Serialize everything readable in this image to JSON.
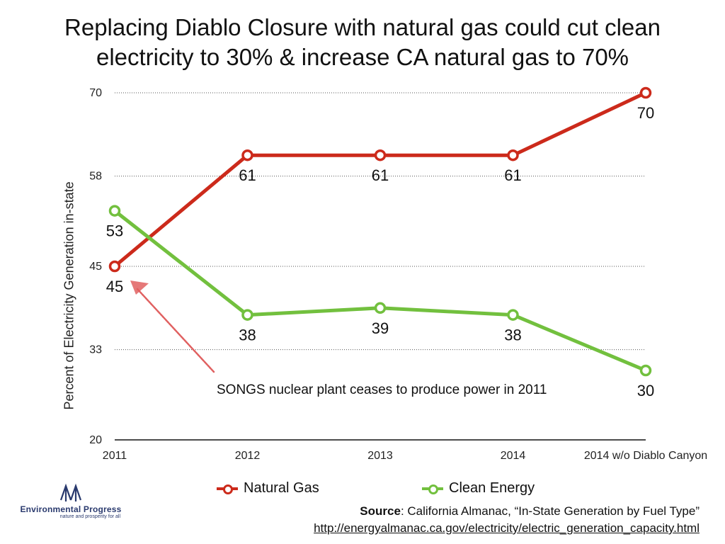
{
  "title_lines": [
    "Replacing Diablo Closure with natural gas could cut clean",
    "electricity to 30% & increase CA natural gas to 70%"
  ],
  "chart_data": {
    "type": "line",
    "title": "Replacing Diablo Closure with natural gas could cut clean electricity to 30% & increase CA natural gas to 70%",
    "ylabel": "Percent of Electricity Generation in-state",
    "xlabel": "",
    "categories": [
      "2011",
      "2012",
      "2013",
      "2014",
      "2014 w/o Diablo Canyon"
    ],
    "yticks": [
      20,
      33,
      45,
      58,
      70
    ],
    "ylim": [
      20,
      70
    ],
    "grid": true,
    "legend_position": "bottom",
    "series": [
      {
        "name": "Natural Gas",
        "color": "#cc2a1b",
        "values": [
          45,
          61,
          61,
          61,
          70
        ],
        "labels": [
          "45",
          "61",
          "61",
          "61",
          "70"
        ]
      },
      {
        "name": "Clean Energy",
        "color": "#72c03e",
        "values": [
          53,
          38,
          39,
          38,
          30
        ],
        "labels": [
          "53",
          "38",
          "39",
          "38",
          "30"
        ]
      }
    ],
    "annotation": {
      "text": "SONGS nuclear plant ceases to produce power in 2011",
      "points_to": {
        "category": "2011",
        "value": 45
      },
      "arrow_color": "#e06060"
    }
  },
  "source": {
    "label": "Source",
    "text": ": California Almanac, “In-State Generation by Fuel Type”",
    "url": "http://energyalmanac.ca.gov/electricity/electric_generation_capacity.html"
  },
  "logo": {
    "name": "Environmental Progress",
    "tagline": "nature and prosperity for all",
    "color": "#2a3a6e"
  }
}
